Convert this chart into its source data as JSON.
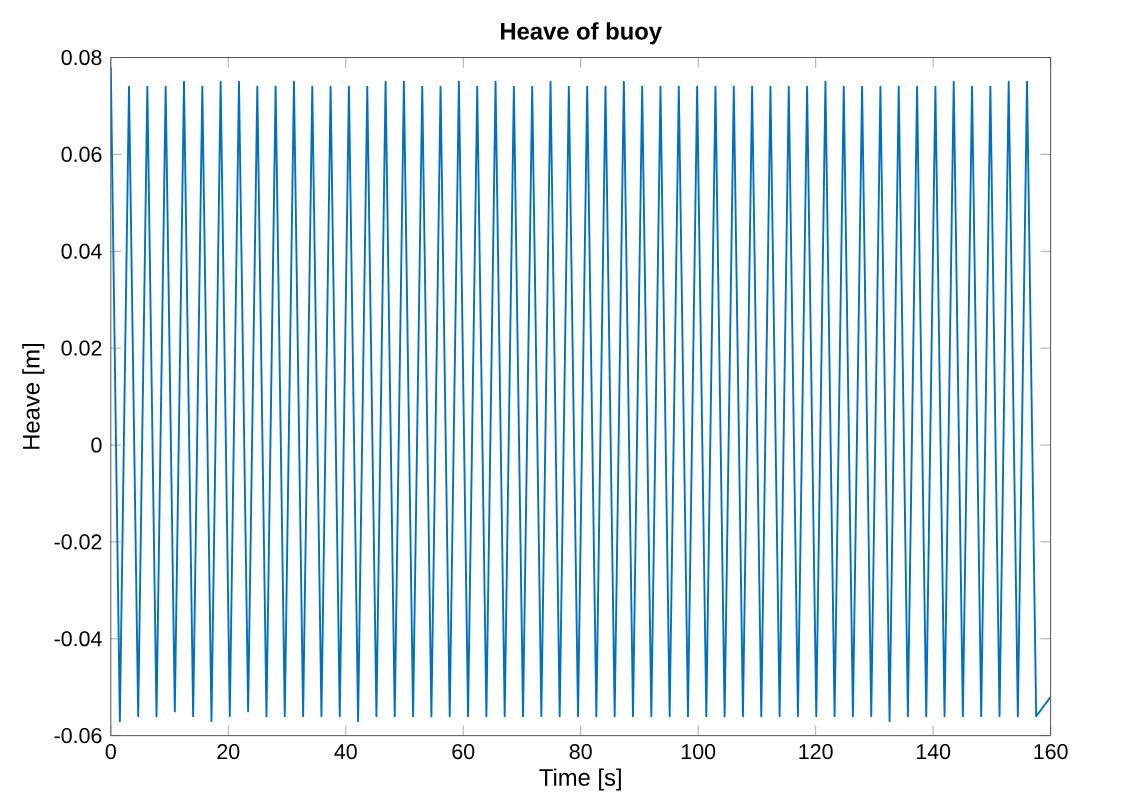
{
  "chart_data": {
    "type": "line",
    "title": "Heave of buoy",
    "xlabel": "Time [s]",
    "ylabel": "Heave [m]",
    "xlim": [
      0,
      160
    ],
    "ylim": [
      -0.06,
      0.08
    ],
    "xticks": [
      0,
      20,
      40,
      60,
      80,
      100,
      120,
      140,
      160
    ],
    "yticks": [
      -0.06,
      -0.04,
      -0.02,
      0,
      0.02,
      0.04,
      0.06,
      0.08
    ],
    "marker": "none",
    "line_style": "solid",
    "series": [
      {
        "color": "#0072bd",
        "x": [
          0,
          1.54,
          3.1,
          4.66,
          6.22,
          7.78,
          9.34,
          10.9,
          12.46,
          14.02,
          15.58,
          17.14,
          18.7,
          20.26,
          21.82,
          23.38,
          24.94,
          26.5,
          28.06,
          29.62,
          31.18,
          32.74,
          34.3,
          35.86,
          37.42,
          38.98,
          40.54,
          42.1,
          43.66,
          45.22,
          46.78,
          48.34,
          49.9,
          51.46,
          53.02,
          54.58,
          56.14,
          57.7,
          59.26,
          60.82,
          62.38,
          63.94,
          65.5,
          67.06,
          68.62,
          70.18,
          71.74,
          73.3,
          74.86,
          76.42,
          77.98,
          79.54,
          81.1,
          82.66,
          84.22,
          85.78,
          87.34,
          88.9,
          90.46,
          92.02,
          93.58,
          95.14,
          96.7,
          98.26,
          99.82,
          101.38,
          102.94,
          104.5,
          106.06,
          107.62,
          109.18,
          110.74,
          112.3,
          113.86,
          115.42,
          116.98,
          118.54,
          120.1,
          121.66,
          123.22,
          124.78,
          126.34,
          127.9,
          129.46,
          131.02,
          132.58,
          134.14,
          135.7,
          137.26,
          138.82,
          140.38,
          141.94,
          143.5,
          145.06,
          146.62,
          148.18,
          149.74,
          151.3,
          152.86,
          154.42,
          155.98,
          157.54,
          160
        ],
        "values": [
          0.078,
          -0.057,
          0.074,
          -0.056,
          0.074,
          -0.056,
          0.074,
          -0.055,
          0.075,
          -0.056,
          0.074,
          -0.057,
          0.075,
          -0.056,
          0.075,
          -0.055,
          0.074,
          -0.056,
          0.074,
          -0.056,
          0.075,
          -0.056,
          0.074,
          -0.056,
          0.074,
          -0.056,
          0.074,
          -0.057,
          0.074,
          -0.056,
          0.075,
          -0.056,
          0.075,
          -0.056,
          0.074,
          -0.056,
          0.074,
          -0.056,
          0.075,
          -0.056,
          0.074,
          -0.056,
          0.075,
          -0.056,
          0.074,
          -0.056,
          0.074,
          -0.056,
          0.075,
          -0.056,
          0.074,
          -0.056,
          0.074,
          -0.056,
          0.074,
          -0.056,
          0.075,
          -0.056,
          0.074,
          -0.056,
          0.074,
          -0.056,
          0.074,
          -0.056,
          0.074,
          -0.056,
          0.074,
          -0.056,
          0.074,
          -0.056,
          0.074,
          -0.056,
          0.074,
          -0.056,
          0.074,
          -0.056,
          0.074,
          -0.056,
          0.075,
          -0.056,
          0.074,
          -0.056,
          0.074,
          -0.056,
          0.074,
          -0.057,
          0.074,
          -0.056,
          0.074,
          -0.056,
          0.074,
          -0.056,
          0.075,
          -0.056,
          0.074,
          -0.056,
          0.074,
          -0.056,
          0.075,
          -0.056,
          0.075,
          -0.056,
          -0.052
        ]
      }
    ]
  }
}
